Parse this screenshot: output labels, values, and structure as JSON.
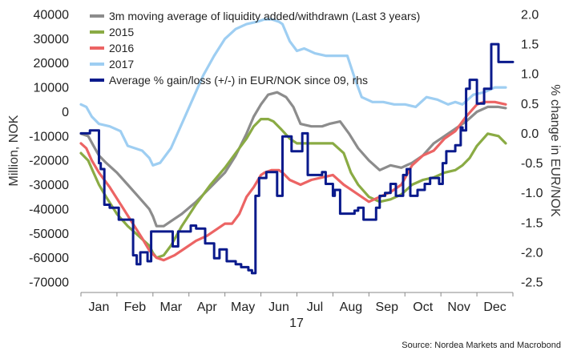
{
  "chart_data": {
    "type": "line",
    "source": "Source: Nordea Markets and Macrobond",
    "ylabel_left": "Million, NOK",
    "ylabel_right": "% change in EUR/NOK",
    "x_year_label": "17",
    "categories": [
      "Jan",
      "Feb",
      "Mar",
      "Apr",
      "May",
      "Jun",
      "Jul",
      "Aug",
      "Sep",
      "Oct",
      "Nov",
      "Dec"
    ],
    "ylim_left": [
      -70000,
      40000
    ],
    "yticks_left": [
      "40000",
      "30000",
      "20000",
      "10000",
      "0",
      "-10000",
      "-20000",
      "-30000",
      "-40000",
      "-50000",
      "-60000",
      "-70000"
    ],
    "ylim_right": [
      -2.5,
      2.0
    ],
    "yticks_right": [
      "2.0",
      "1.5",
      "1.0",
      "0.5",
      "0.0",
      "-0.5",
      "-1.0",
      "-1.5",
      "-2.0",
      "-2.5"
    ],
    "legend_position": "top-left",
    "grid": false,
    "series": [
      {
        "name": "3m moving average of liquidity added/withdrawn (Last 3 years)",
        "color": "#8c8c8c",
        "axis": "left",
        "x": [
          0.0,
          0.2,
          0.35,
          0.5,
          0.7,
          1.0,
          1.3,
          1.6,
          1.9,
          2.0,
          2.1,
          2.3,
          2.5,
          2.8,
          3.2,
          3.6,
          4.0,
          4.3,
          4.6,
          4.8,
          5.0,
          5.2,
          5.45,
          5.7,
          5.9,
          6.1,
          6.4,
          6.7,
          6.9,
          7.2,
          7.45,
          7.7,
          8.0,
          8.3,
          8.6,
          8.9,
          9.2,
          9.5,
          9.8,
          10.1,
          10.4,
          10.7,
          11.0,
          11.3,
          11.6,
          11.8
        ],
        "values": [
          -9000,
          -10000,
          -14000,
          -18000,
          -21000,
          -25000,
          -30000,
          -35000,
          -40000,
          -43000,
          -47000,
          -47000,
          -45000,
          -42000,
          -37000,
          -31000,
          -25000,
          -18000,
          -9000,
          -2000,
          3000,
          7000,
          8000,
          6000,
          2000,
          -5000,
          -6000,
          -6000,
          -5000,
          -4000,
          -9000,
          -15000,
          -20000,
          -24000,
          -22000,
          -23000,
          -21000,
          -18000,
          -13000,
          -10000,
          -7000,
          -4000,
          0,
          2000,
          2000,
          1500
        ]
      },
      {
        "name": "2015",
        "color": "#8aab44",
        "axis": "left",
        "x": [
          0.0,
          0.2,
          0.35,
          0.5,
          0.7,
          1.0,
          1.3,
          1.6,
          1.9,
          2.0,
          2.1,
          2.3,
          2.5,
          2.8,
          3.2,
          3.6,
          4.0,
          4.3,
          4.6,
          4.8,
          5.0,
          5.2,
          5.35,
          5.55,
          5.8,
          6.0,
          6.2,
          6.5,
          6.8,
          7.0,
          7.3,
          7.5,
          7.7,
          8.0,
          8.3,
          8.6,
          8.9,
          9.2,
          9.5,
          9.8,
          10.1,
          10.4,
          10.6,
          10.8,
          11.0,
          11.3,
          11.6,
          11.8
        ],
        "values": [
          -17000,
          -20000,
          -25000,
          -30000,
          -35000,
          -42000,
          -47000,
          -51000,
          -55000,
          -58000,
          -60000,
          -59000,
          -55000,
          -47000,
          -38000,
          -30000,
          -23000,
          -17000,
          -11000,
          -6000,
          -3000,
          -3000,
          -4000,
          -7000,
          -11000,
          -13000,
          -13000,
          -13000,
          -13000,
          -13000,
          -17000,
          -25000,
          -30000,
          -35000,
          -37000,
          -36000,
          -34000,
          -30000,
          -28000,
          -27000,
          -25000,
          -24000,
          -22000,
          -19000,
          -14000,
          -9000,
          -10000,
          -13000
        ]
      },
      {
        "name": "2016",
        "color": "#ec6464",
        "axis": "left",
        "x": [
          0.0,
          0.15,
          0.3,
          0.5,
          0.8,
          1.1,
          1.4,
          1.7,
          1.9,
          2.1,
          2.3,
          2.6,
          2.9,
          3.2,
          3.5,
          3.8,
          4.0,
          4.2,
          4.4,
          4.6,
          4.8,
          5.0,
          5.1,
          5.3,
          5.5,
          5.6,
          5.8,
          6.1,
          6.4,
          6.7,
          7.0,
          7.3,
          7.5,
          7.7,
          8.0,
          8.3,
          8.6,
          8.9,
          9.2,
          9.5,
          9.8,
          10.1,
          10.4,
          10.7,
          11.0,
          11.2,
          11.5,
          11.8
        ],
        "values": [
          -13000,
          -15000,
          -20000,
          -25000,
          -31000,
          -38000,
          -45000,
          -52000,
          -57000,
          -60000,
          -61000,
          -59000,
          -56000,
          -53000,
          -51000,
          -48000,
          -46000,
          -46000,
          -42000,
          -35000,
          -31000,
          -26000,
          -25000,
          -24000,
          -24000,
          -25000,
          -28000,
          -30000,
          -28000,
          -27000,
          -26000,
          -30000,
          -32000,
          -34000,
          -37000,
          -35000,
          -33000,
          -30000,
          -22000,
          -18000,
          -16000,
          -11000,
          -8000,
          -2000,
          3000,
          4000,
          4000,
          3000
        ]
      },
      {
        "name": "2017",
        "color": "#9ecef2",
        "axis": "left",
        "x": [
          0.0,
          0.15,
          0.3,
          0.5,
          0.8,
          1.1,
          1.3,
          1.5,
          1.7,
          1.9,
          2.0,
          2.2,
          2.5,
          2.8,
          3.1,
          3.4,
          3.7,
          4.0,
          4.3,
          4.6,
          4.9,
          5.1,
          5.3,
          5.5,
          5.6,
          5.8,
          6.0,
          6.2,
          6.5,
          6.8,
          7.1,
          7.4,
          7.6,
          7.8,
          8.1,
          8.4,
          8.7,
          9.0,
          9.3,
          9.6,
          9.9,
          10.2,
          10.4,
          10.6,
          10.9,
          11.2,
          11.5,
          11.8
        ],
        "values": [
          3000,
          2000,
          -2000,
          -5000,
          -6000,
          -8000,
          -14000,
          -15000,
          -16000,
          -19000,
          -22000,
          -21000,
          -15000,
          -5000,
          5000,
          15000,
          23000,
          30000,
          34000,
          36000,
          37000,
          38000,
          38000,
          37000,
          36000,
          29000,
          25000,
          26000,
          24000,
          23000,
          23000,
          23000,
          14000,
          6000,
          4000,
          4000,
          3000,
          3000,
          2000,
          6000,
          5000,
          3000,
          4000,
          3000,
          7000,
          8000,
          10000,
          10000
        ]
      },
      {
        "name": "Average % gain/loss (+/-) in EUR/NOK since 09, rhs",
        "color": "#0a1a8c",
        "axis": "right",
        "style": "step",
        "x": [
          0.0,
          0.25,
          0.5,
          0.55,
          0.65,
          0.8,
          1.05,
          1.2,
          1.45,
          1.55,
          1.65,
          1.85,
          1.95,
          2.15,
          2.3,
          2.55,
          2.7,
          2.8,
          3.05,
          3.2,
          3.3,
          3.45,
          3.6,
          3.7,
          3.85,
          3.95,
          4.05,
          4.15,
          4.2,
          4.3,
          4.45,
          4.55,
          4.65,
          4.75,
          4.85,
          4.95,
          5.15,
          5.2,
          5.35,
          5.45,
          5.5,
          5.6,
          5.75,
          5.85,
          6.1,
          6.15,
          6.3,
          6.5,
          6.7,
          6.8,
          7.0,
          7.05,
          7.2,
          7.3,
          7.45,
          7.6,
          7.7,
          7.85,
          8.0,
          8.15,
          8.2,
          8.3,
          8.45,
          8.6,
          8.75,
          8.85,
          8.95,
          9.05,
          9.15,
          9.25,
          9.35,
          9.45,
          9.55,
          9.7,
          9.85,
          9.95,
          10.05,
          10.15,
          10.3,
          10.4,
          10.55,
          10.6,
          10.7,
          10.8,
          11.0,
          11.2,
          11.4,
          11.5,
          11.6,
          11.8
        ],
        "values": [
          0.0,
          0.05,
          -0.5,
          -0.6,
          -1.2,
          -1.25,
          -1.45,
          -1.45,
          -2.05,
          -2.2,
          -2.0,
          -2.15,
          -1.65,
          -1.65,
          -1.65,
          -1.9,
          -1.65,
          -1.65,
          -1.55,
          -1.6,
          -1.6,
          -1.85,
          -1.85,
          -2.1,
          -1.95,
          -1.95,
          -2.15,
          -2.15,
          -2.15,
          -2.2,
          -2.25,
          -2.25,
          -2.3,
          -2.35,
          -1.05,
          -0.75,
          -0.65,
          -0.65,
          -0.65,
          -1.05,
          -1.05,
          -0.05,
          -0.05,
          -0.3,
          -0.3,
          0.0,
          -0.7,
          -0.7,
          -0.65,
          -0.85,
          -1.05,
          -0.95,
          -1.35,
          -1.35,
          -1.35,
          -1.3,
          -1.25,
          -1.45,
          -1.45,
          -1.45,
          -1.25,
          -1.05,
          -1.0,
          -0.85,
          -1.05,
          -1.05,
          -0.7,
          -0.6,
          -1.05,
          -1.05,
          -0.95,
          -0.95,
          -0.85,
          -0.75,
          -0.75,
          -0.85,
          -0.5,
          -0.3,
          -0.3,
          -0.2,
          0.1,
          0.05,
          0.75,
          0.9,
          0.5,
          0.75,
          1.5,
          1.5,
          1.2,
          1.2
        ]
      }
    ]
  }
}
